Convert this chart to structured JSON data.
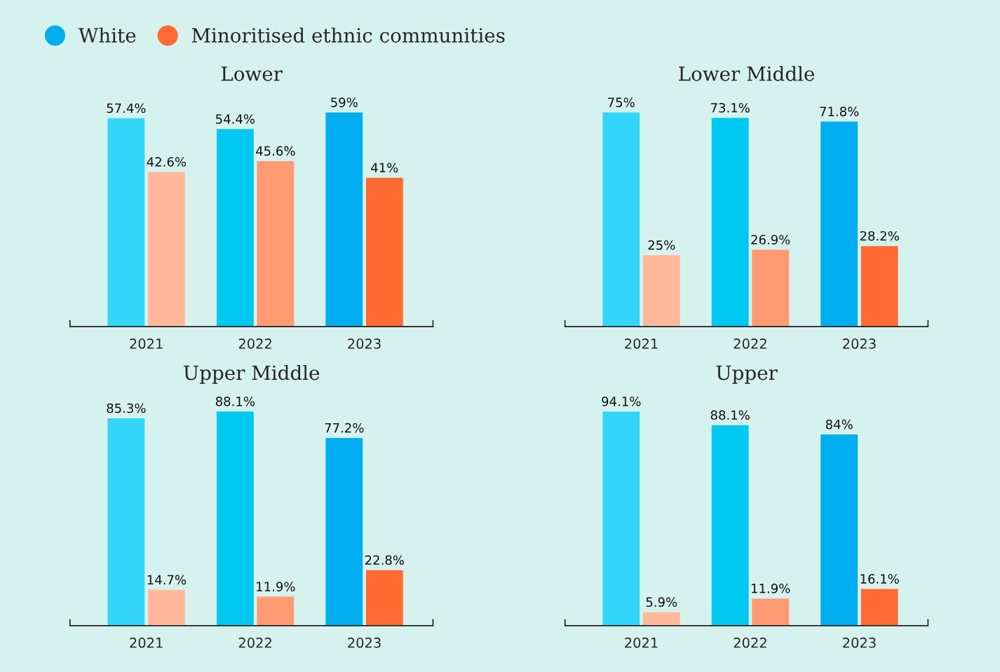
{
  "chart_data": [
    {
      "type": "bar",
      "title": "Lower",
      "categories": [
        "2021",
        "2022",
        "2023"
      ],
      "tick_labels": "x",
      "legend": "top",
      "series": [
        {
          "name": "White",
          "color": "#00aeef",
          "colors": [
            "#33d6f8",
            "#00c8f0",
            "#00aeef"
          ],
          "values": [
            57.4,
            54.4,
            59
          ],
          "value_labels": [
            "57.4%",
            "54.4%",
            "59%"
          ]
        },
        {
          "name": "Minoritised ethnic communities",
          "color": "#ff6a33",
          "colors": [
            "#ffb89c",
            "#ff9a72",
            "#ff6a33"
          ],
          "values": [
            42.6,
            45.6,
            41
          ],
          "value_labels": [
            "42.6%",
            "45.6%",
            "41%"
          ]
        }
      ]
    },
    {
      "type": "bar",
      "title": "Lower Middle",
      "categories": [
        "2021",
        "2022",
        "2023"
      ],
      "tick_labels": "x",
      "series": [
        {
          "colors": [
            "#33d6f8",
            "#00c8f0",
            "#00aeef"
          ],
          "values": [
            75,
            73.1,
            71.8
          ],
          "value_labels": [
            "75%",
            "73.1%",
            "71.8%"
          ]
        },
        {
          "colors": [
            "#ffb89c",
            "#ff9a72",
            "#ff6a33"
          ],
          "values": [
            25,
            26.9,
            28.2
          ],
          "value_labels": [
            "25%",
            "26.9%",
            "28.2%"
          ]
        }
      ]
    },
    {
      "type": "bar",
      "title": "Upper Middle",
      "categories": [
        "2021",
        "2022",
        "2023"
      ],
      "tick_labels": "x",
      "series": [
        {
          "colors": [
            "#33d6f8",
            "#00c8f0",
            "#00aeef"
          ],
          "values": [
            85.3,
            88.1,
            77.2
          ],
          "value_labels": [
            "85.3%",
            "88.1%",
            "77.2%"
          ]
        },
        {
          "colors": [
            "#ffb89c",
            "#ff9a72",
            "#ff6a33"
          ],
          "values": [
            14.7,
            11.9,
            22.8
          ],
          "value_labels": [
            "14.7%",
            "11.9%",
            "22.8%"
          ]
        }
      ]
    },
    {
      "type": "bar",
      "title": "Upper",
      "categories": [
        "2021",
        "2022",
        "2023"
      ],
      "tick_labels": "x",
      "series": [
        {
          "colors": [
            "#33d6f8",
            "#00c8f0",
            "#00aeef"
          ],
          "values": [
            94.1,
            88.1,
            84
          ],
          "value_labels": [
            "94.1%",
            "88.1%",
            "84%"
          ]
        },
        {
          "colors": [
            "#ffb89c",
            "#ff9a72",
            "#ff6a33"
          ],
          "values": [
            5.9,
            11.9,
            16.1
          ],
          "value_labels": [
            "5.9%",
            "11.9%",
            "16.1%"
          ]
        }
      ]
    }
  ]
}
